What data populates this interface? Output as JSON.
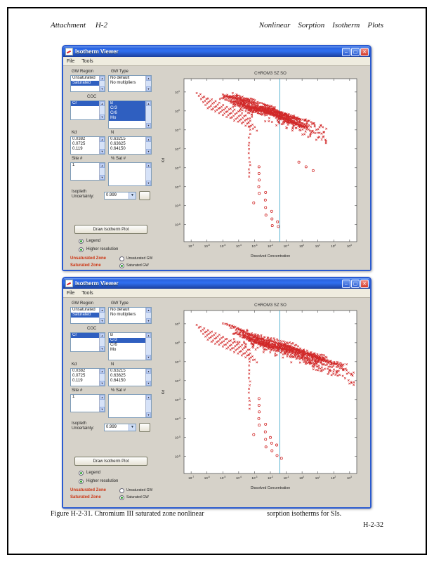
{
  "page": {
    "header_left": "Attachment     H-2",
    "header_right": "Nonlinear    Sorption    Isotherm    Plots",
    "caption_left": "Figure H-2-31. Chromium III saturated zone nonlinear",
    "caption_right": "sorption isotherms for SIs.",
    "page_number": "H-2-32"
  },
  "icons": {
    "minimize": "–",
    "maximize": "▢",
    "close": "✕",
    "scroll_up": "▲",
    "scroll_down": "▼",
    "dropdown": "▼"
  },
  "windows": [
    {
      "title": "Isotherm Viewer",
      "menu": [
        "File",
        "Tools"
      ],
      "panel": {
        "gw_region_label": "GW Region",
        "gw_type_label": "GW Type",
        "gw_region_items": [
          {
            "label": "Unsaturated",
            "selected": false
          },
          {
            "label": "Saturated",
            "selected": true
          }
        ],
        "gw_type_items": [
          {
            "label": "No default",
            "selected": false
          },
          {
            "label": "No multipliers",
            "selected": false
          }
        ],
        "coc_label": "COC",
        "coc_group_items": [
          {
            "label": "Cr",
            "selected": true
          }
        ],
        "coc_items": [
          {
            "label": "B",
            "selected": true
          },
          {
            "label": "Cr3",
            "selected": true
          },
          {
            "label": "Cr6",
            "selected": true
          },
          {
            "label": "Mo",
            "selected": true
          }
        ],
        "kd_label": "Kd",
        "n_label": "N",
        "kd_items": [
          {
            "label": "0.0382",
            "selected": false
          },
          {
            "label": "0.0725",
            "selected": false
          },
          {
            "label": "0.119",
            "selected": false
          }
        ],
        "n_items": [
          {
            "label": "0.63215",
            "selected": false
          },
          {
            "label": "0.63625",
            "selected": false
          },
          {
            "label": "0.64150",
            "selected": false
          }
        ],
        "site_label": "Site #",
        "pct_sat_label": "% Sat #",
        "site_items": [
          {
            "label": "1",
            "selected": false
          }
        ],
        "pct_sat_items": [],
        "isopleth_label_1": "Isopleth",
        "isopleth_label_2": "Uncertainty:",
        "isopleth_value": "0.999",
        "draw_button": "Draw Isotherm Plot",
        "legend_radio": {
          "label": "Legend",
          "checked": true
        },
        "hires_radio": {
          "label": "Higher resolution",
          "checked": true
        },
        "unsat_zone_text": "Unsaturated Zone",
        "sat_zone_text": "Saturated Zone",
        "unsat_gw_radio": {
          "label": "Unsaturated GW",
          "checked": false
        },
        "sat_gw_radio": {
          "label": "Saturated GW",
          "checked": true
        }
      }
    },
    {
      "title": "Isotherm Viewer",
      "menu": [
        "File",
        "Tools"
      ],
      "panel": {
        "gw_region_label": "GW Region",
        "gw_type_label": "GW Type",
        "gw_region_items": [
          {
            "label": "Unsaturated",
            "selected": false
          },
          {
            "label": "Saturated",
            "selected": true
          }
        ],
        "gw_type_items": [
          {
            "label": "No default",
            "selected": false
          },
          {
            "label": "No multipliers",
            "selected": false
          }
        ],
        "coc_label": "COC",
        "coc_group_items": [
          {
            "label": "Cr",
            "selected": true
          }
        ],
        "coc_items": [
          {
            "label": "B",
            "selected": false
          },
          {
            "label": "Cr3",
            "selected": true
          },
          {
            "label": "Cr6",
            "selected": false
          },
          {
            "label": "Mo",
            "selected": false
          }
        ],
        "kd_label": "Kd",
        "n_label": "N",
        "kd_items": [
          {
            "label": "0.0382",
            "selected": false
          },
          {
            "label": "0.0725",
            "selected": false
          },
          {
            "label": "0.119",
            "selected": false
          }
        ],
        "n_items": [
          {
            "label": "0.63215",
            "selected": false
          },
          {
            "label": "0.63625",
            "selected": false
          },
          {
            "label": "0.64150",
            "selected": false
          }
        ],
        "site_label": "Site #",
        "pct_sat_label": "% Sat #",
        "site_items": [
          {
            "label": "1",
            "selected": false
          }
        ],
        "pct_sat_items": [],
        "isopleth_label_1": "Isopleth",
        "isopleth_label_2": "Uncertainty:",
        "isopleth_value": "0.999",
        "draw_button": "Draw Isotherm Plot",
        "legend_radio": {
          "label": "Legend",
          "checked": true
        },
        "hires_radio": {
          "label": "Higher resolution",
          "checked": true
        },
        "unsat_zone_text": "Unsaturated Zone",
        "sat_zone_text": "Saturated Zone",
        "unsat_gw_radio": {
          "label": "Unsaturated GW",
          "checked": false
        },
        "sat_gw_radio": {
          "label": "Saturated GW",
          "checked": true
        }
      }
    }
  ],
  "chart_data": [
    {
      "type": "scatter",
      "title": "CHROM3 SZ SO",
      "xlabel": "Dissolved Concentration",
      "ylabel": "Kd",
      "x_scale": "log",
      "y_scale": "log",
      "x_tick_exponents": [
        -7,
        -6,
        -5,
        -4,
        -3,
        -2,
        -1,
        0,
        1,
        2,
        3
      ],
      "y_tick_exponents": [
        -6,
        -5,
        -4,
        -3,
        -2,
        -1,
        0,
        1
      ],
      "x_range_exp": [
        -7.45,
        3.45
      ],
      "y_range_exp": [
        -6.9,
        1.7
      ],
      "vline_exp": -1.4,
      "marker_color": "#cc1111",
      "vline_color": "#2f9fc4",
      "seed": 11,
      "cloud": {
        "n_series": 46,
        "x0": [
          -5.2,
          -0.8
        ],
        "len": [
          1.2,
          2.2
        ],
        "slope": [
          -0.18,
          -0.42
        ],
        "top_y": 0.9,
        "fall": 0.3,
        "jitter": 0.5,
        "floor": -2.3
      },
      "extra_cloud_points": 170,
      "left_lines": {
        "n": 6,
        "x0": -6.65,
        "dx": 0.14,
        "y0": 0.95,
        "dy": -0.16,
        "slope": -0.38,
        "len": 3.1,
        "pts": 13
      },
      "column": {
        "x": -3.32,
        "y_top": -0.4,
        "y_bot": -3.5,
        "n": 16
      },
      "circle_points": [
        [
          -2.72,
          -2.95
        ],
        [
          -2.72,
          -3.3
        ],
        [
          -2.7,
          -3.65
        ],
        [
          -2.73,
          -4.0
        ],
        [
          -2.7,
          -4.35
        ],
        [
          -2.3,
          -4.3
        ],
        [
          -2.32,
          -4.7
        ],
        [
          -2.3,
          -5.1
        ],
        [
          -2.28,
          -5.5
        ],
        [
          -1.92,
          -5.3
        ],
        [
          -1.9,
          -5.7
        ],
        [
          -1.88,
          -6.05
        ],
        [
          -1.55,
          -5.85
        ],
        [
          -1.5,
          -6.1
        ],
        [
          -3.05,
          -4.85
        ],
        [
          -0.2,
          -2.7
        ],
        [
          0.25,
          -2.95
        ],
        [
          0.7,
          -3.15
        ]
      ]
    },
    {
      "type": "scatter",
      "title": "CHROM3 SZ SO",
      "xlabel": "Dissolved Concentration",
      "ylabel": "Kd",
      "x_scale": "log",
      "y_scale": "log",
      "x_tick_exponents": [
        -7,
        -6,
        -5,
        -4,
        -3,
        -2,
        -1,
        0,
        1,
        2,
        3
      ],
      "y_tick_exponents": [
        -6,
        -5,
        -4,
        -3,
        -2,
        -1,
        0,
        1
      ],
      "x_range_exp": [
        -7.45,
        3.45
      ],
      "y_range_exp": [
        -6.9,
        1.7
      ],
      "vline_exp": -1.4,
      "marker_color": "#cc1111",
      "vline_color": "#2f9fc4",
      "seed": 29,
      "cloud": {
        "n_series": 48,
        "x0": [
          -5.2,
          0.9
        ],
        "len": [
          1.4,
          3.0
        ],
        "slope": [
          -0.18,
          -0.42
        ],
        "top_y": 0.9,
        "fall": 0.3,
        "jitter": 0.5,
        "floor": -2.3
      },
      "extra_cloud_points": 190,
      "left_lines": {
        "n": 6,
        "x0": -6.65,
        "dx": 0.14,
        "y0": 0.95,
        "dy": -0.16,
        "slope": -0.38,
        "len": 3.1,
        "pts": 13
      },
      "column": {
        "x": -3.32,
        "y_top": -0.4,
        "y_bot": -3.5,
        "n": 16
      },
      "circle_points": [
        [
          -2.72,
          -2.95
        ],
        [
          -2.72,
          -3.3
        ],
        [
          -2.7,
          -3.65
        ],
        [
          -2.73,
          -4.0
        ],
        [
          -2.7,
          -4.35
        ],
        [
          -2.3,
          -4.3
        ],
        [
          -2.32,
          -4.7
        ],
        [
          -2.3,
          -5.1
        ],
        [
          -2.28,
          -5.5
        ],
        [
          -2.0,
          -5.0
        ],
        [
          -1.92,
          -5.3
        ],
        [
          -1.9,
          -5.7
        ],
        [
          -1.6,
          -5.4
        ],
        [
          -1.58,
          -5.95
        ],
        [
          -1.3,
          -6.1
        ],
        [
          -3.05,
          -4.85
        ]
      ]
    }
  ]
}
